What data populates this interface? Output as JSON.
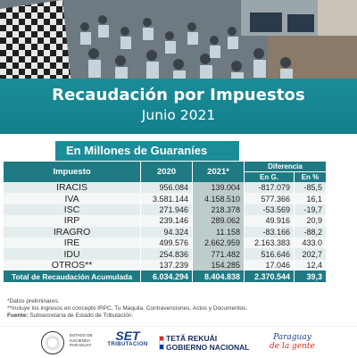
{
  "header": {
    "title": "Recaudación por Impuestos",
    "period": "Junio 2021"
  },
  "subheader": "En Millones de Guaraníes",
  "table": {
    "columns": {
      "impuesto": "Impuesto",
      "y2020": "2020",
      "y2021": "2021*",
      "diferencia": "Diferencia",
      "en_g": "En G.",
      "en_pct": "En %"
    },
    "rows": [
      {
        "name": "IRACIS",
        "y2020": "956.084",
        "y2021": "139.004",
        "dif_g": "-817.079",
        "dif_pct": "-85,5"
      },
      {
        "name": "IVA",
        "y2020": "3.581.144",
        "y2021": "4.158.510",
        "dif_g": "577.366",
        "dif_pct": "16,1"
      },
      {
        "name": "ISC",
        "y2020": "271.946",
        "y2021": "218.378",
        "dif_g": "-53.569",
        "dif_pct": "-19,7"
      },
      {
        "name": "IRP",
        "y2020": "239.146",
        "y2021": "289.062",
        "dif_g": "49.916",
        "dif_pct": "20,9"
      },
      {
        "name": "IRAGRO",
        "y2020": "94.324",
        "y2021": "11.158",
        "dif_g": "-83.166",
        "dif_pct": "-88,2"
      },
      {
        "name": "IRE",
        "y2020": "499.576",
        "y2021": "2.662.959",
        "dif_g": "2.163.383",
        "dif_pct": "433.0"
      },
      {
        "name": "IDU",
        "y2020": "254.836",
        "y2021": "771.482",
        "dif_g": "516.646",
        "dif_pct": "202,7"
      },
      {
        "name": "OTROS**",
        "y2020": "137.239",
        "y2021": "154.285",
        "dif_g": "17.046",
        "dif_pct": "12,4"
      }
    ],
    "total": {
      "label": "Total de Recaudación Acumulada",
      "y2020": "6.034.294",
      "y2021": "8.404.838",
      "dif_g": "2.370.544",
      "dif_pct": "39,3"
    }
  },
  "notes": {
    "n1": "*Datos preliminares.",
    "n2": "**Incluye los ingresos en concepto IRPC, Tu Maquila, Contravenciones, Actos y Documentos.",
    "source_label": "Fuente:",
    "source_text": " Subsecretaría de Estado de Tributación."
  },
  "footer": {
    "ministry_lines": [
      "ESTADO DE",
      "HACIENDA",
      "PARAGUAY"
    ],
    "set_logo": "SET",
    "set_sub": "TRIBUTACION",
    "gov_line1": "TETÃ REKUÁI",
    "gov_line2": "GOBIERNO NACIONAL",
    "slogan_line1": "Paraguay",
    "slogan_line2": "de la gente"
  },
  "colors": {
    "teal": "#1a8d98",
    "table_header": "#1f7a83",
    "row_light": "#f4f7f7",
    "row_dark": "#e4eded"
  }
}
